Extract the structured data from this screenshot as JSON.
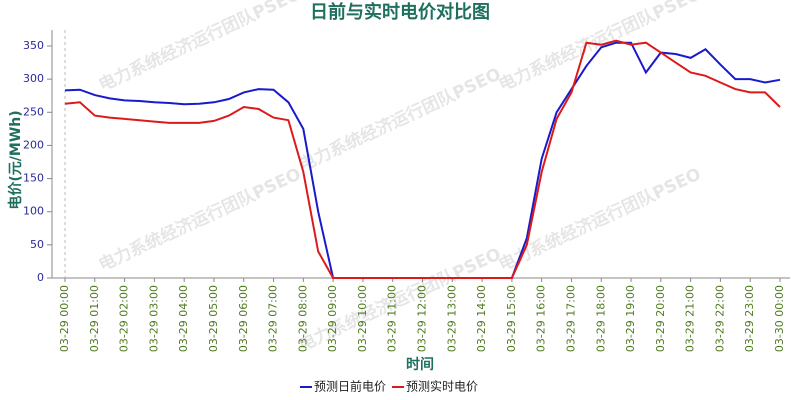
{
  "chart_data": {
    "type": "line",
    "title": "日前与实时电价对比图",
    "y_label": "电价(元/MWh)",
    "x_label": "时间",
    "watermark": "电力系统经济运行团队PSEO",
    "categories": [
      "03-29 00:00",
      null,
      "03-29 01:00",
      null,
      "03-29 02:00",
      null,
      "03-29 03:00",
      null,
      "03-29 04:00",
      null,
      "03-29 05:00",
      null,
      "03-29 06:00",
      null,
      "03-29 07:00",
      null,
      "03-29 08:00",
      null,
      "03-29 09:00",
      null,
      "03-29 10:00",
      null,
      "03-29 11:00",
      null,
      "03-29 12:00",
      null,
      "03-29 13:00",
      null,
      "03-29 14:00",
      null,
      "03-29 15:00",
      null,
      "03-29 16:00",
      null,
      "03-29 17:00",
      null,
      "03-29 18:00",
      null,
      "03-29 19:00",
      null,
      "03-29 20:00",
      null,
      "03-29 21:00",
      null,
      "03-29 22:00",
      null,
      "03-29 23:00",
      null,
      "03-30 00:00"
    ],
    "series": [
      {
        "name": "预测日前电价",
        "color": "#1a1acc",
        "values": [
          283,
          284,
          276,
          271,
          268,
          267,
          265,
          264,
          262,
          263,
          265,
          270,
          280,
          285,
          284,
          265,
          225,
          100,
          0,
          0,
          0,
          0,
          0,
          0,
          0,
          0,
          0,
          0,
          0,
          0,
          0,
          60,
          180,
          250,
          285,
          320,
          348,
          355,
          355,
          310,
          340,
          338,
          332,
          345,
          322,
          300,
          300,
          295,
          299
        ]
      },
      {
        "name": "预测实时电价",
        "color": "#dd1a1a",
        "values": [
          263,
          265,
          245,
          242,
          240,
          238,
          236,
          234,
          234,
          234,
          237,
          245,
          258,
          255,
          242,
          238,
          160,
          40,
          0,
          0,
          0,
          0,
          0,
          0,
          0,
          0,
          0,
          0,
          0,
          0,
          0,
          50,
          160,
          240,
          280,
          355,
          352,
          358,
          352,
          355,
          340,
          325,
          310,
          305,
          295,
          285,
          280,
          280,
          258
        ]
      }
    ],
    "ylim": [
      0,
      365
    ],
    "yticks": [
      0,
      50,
      100,
      150,
      200,
      250,
      300,
      350
    ]
  }
}
